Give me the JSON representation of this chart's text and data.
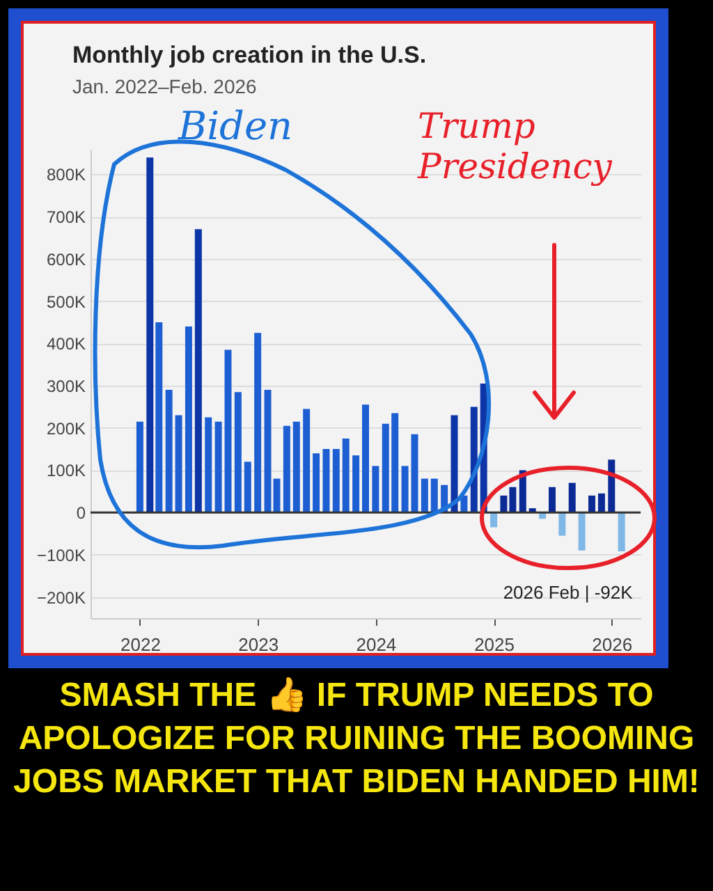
{
  "chart_data": {
    "type": "bar",
    "title": "Monthly job creation in the U.S.",
    "subtitle": "Jan. 2022–Feb. 2026",
    "x": [
      "2022-01",
      "2022-02",
      "2022-03",
      "2022-04",
      "2022-05",
      "2022-06",
      "2022-07",
      "2022-08",
      "2022-09",
      "2022-10",
      "2022-11",
      "2022-12",
      "2023-01",
      "2023-02",
      "2023-03",
      "2023-04",
      "2023-05",
      "2023-06",
      "2023-07",
      "2023-08",
      "2023-09",
      "2023-10",
      "2023-11",
      "2023-12",
      "2024-01",
      "2024-02",
      "2024-03",
      "2024-04",
      "2024-05",
      "2024-06",
      "2024-07",
      "2024-08",
      "2024-09",
      "2024-10",
      "2024-11",
      "2024-12",
      "2025-01",
      "2025-02",
      "2025-03",
      "2025-04",
      "2025-05",
      "2025-06",
      "2025-07",
      "2025-08",
      "2025-09",
      "2025-10",
      "2025-11",
      "2025-12",
      "2026-01",
      "2026-02"
    ],
    "values": [
      215000,
      840000,
      450000,
      290000,
      230000,
      440000,
      670000,
      225000,
      215000,
      385000,
      285000,
      120000,
      425000,
      290000,
      80000,
      205000,
      215000,
      245000,
      140000,
      150000,
      150000,
      175000,
      135000,
      255000,
      110000,
      210000,
      235000,
      110000,
      185000,
      80000,
      80000,
      65000,
      230000,
      40000,
      250000,
      305000,
      -35000,
      40000,
      60000,
      100000,
      10000,
      -15000,
      60000,
      -55000,
      70000,
      -90000,
      40000,
      45000,
      125000,
      -92000
    ],
    "colors": [
      "#1d5fd3",
      "#0d35a8",
      "#1d5fd3",
      "#1d5fd3",
      "#1d5fd3",
      "#1d5fd3",
      "#0d35a8",
      "#1d5fd3",
      "#1d5fd3",
      "#1d5fd3",
      "#1d5fd3",
      "#1d5fd3",
      "#1d5fd3",
      "#1d5fd3",
      "#1d5fd3",
      "#1d5fd3",
      "#1d5fd3",
      "#1d5fd3",
      "#1d5fd3",
      "#1d5fd3",
      "#1d5fd3",
      "#1d5fd3",
      "#1d5fd3",
      "#1d5fd3",
      "#1d5fd3",
      "#1d5fd3",
      "#1d5fd3",
      "#1d5fd3",
      "#1d5fd3",
      "#1d5fd3",
      "#1d5fd3",
      "#1d5fd3",
      "#0d35a8",
      "#1d5fd3",
      "#0d35a8",
      "#0d35a8",
      "#7fb8e6",
      "#0b2a96",
      "#0b2a96",
      "#0b2a96",
      "#0b2a96",
      "#7fb8e6",
      "#0b2a96",
      "#7fb8e6",
      "#0b2a96",
      "#7fb8e6",
      "#0b2a96",
      "#0b2a96",
      "#0b2a96",
      "#7fb8e6"
    ],
    "xlim": [
      "2021-08-01",
      "2026-04-01"
    ],
    "xticks": [
      {
        "value": "2022-01",
        "label": "2022"
      },
      {
        "value": "2023-01",
        "label": "2023"
      },
      {
        "value": "2024-01",
        "label": "2024"
      },
      {
        "value": "2025-01",
        "label": "2025"
      },
      {
        "value": "2026-01",
        "label": "2026"
      }
    ],
    "ylim": [
      -250000,
      860000
    ],
    "yticks": [
      {
        "value": -200000,
        "label": "−200K"
      },
      {
        "value": -100000,
        "label": "−100K"
      },
      {
        "value": 0,
        "label": "0"
      },
      {
        "value": 100000,
        "label": "100K"
      },
      {
        "value": 200000,
        "label": "200K"
      },
      {
        "value": 300000,
        "label": "300K"
      },
      {
        "value": 400000,
        "label": "400K"
      },
      {
        "value": 500000,
        "label": "500K"
      },
      {
        "value": 600000,
        "label": "600K"
      },
      {
        "value": 700000,
        "label": "700K"
      },
      {
        "value": 800000,
        "label": "800K"
      }
    ],
    "grid": "y",
    "ref_lines": [
      {
        "axis": "y",
        "value": 0,
        "color": "#333333"
      }
    ],
    "annotations": [
      "Biden",
      "Trump Presidency",
      {
        "text": "2026 Feb | -92K",
        "x": "2026-02",
        "y": -92000
      },
      "SMASH THE 👍 IF TRUMP NEEDS TO APOLOGIZE FOR RUINING THE BOOMING JOBS MARKET THAT BIDEN HANDED HIM!"
    ]
  }
}
